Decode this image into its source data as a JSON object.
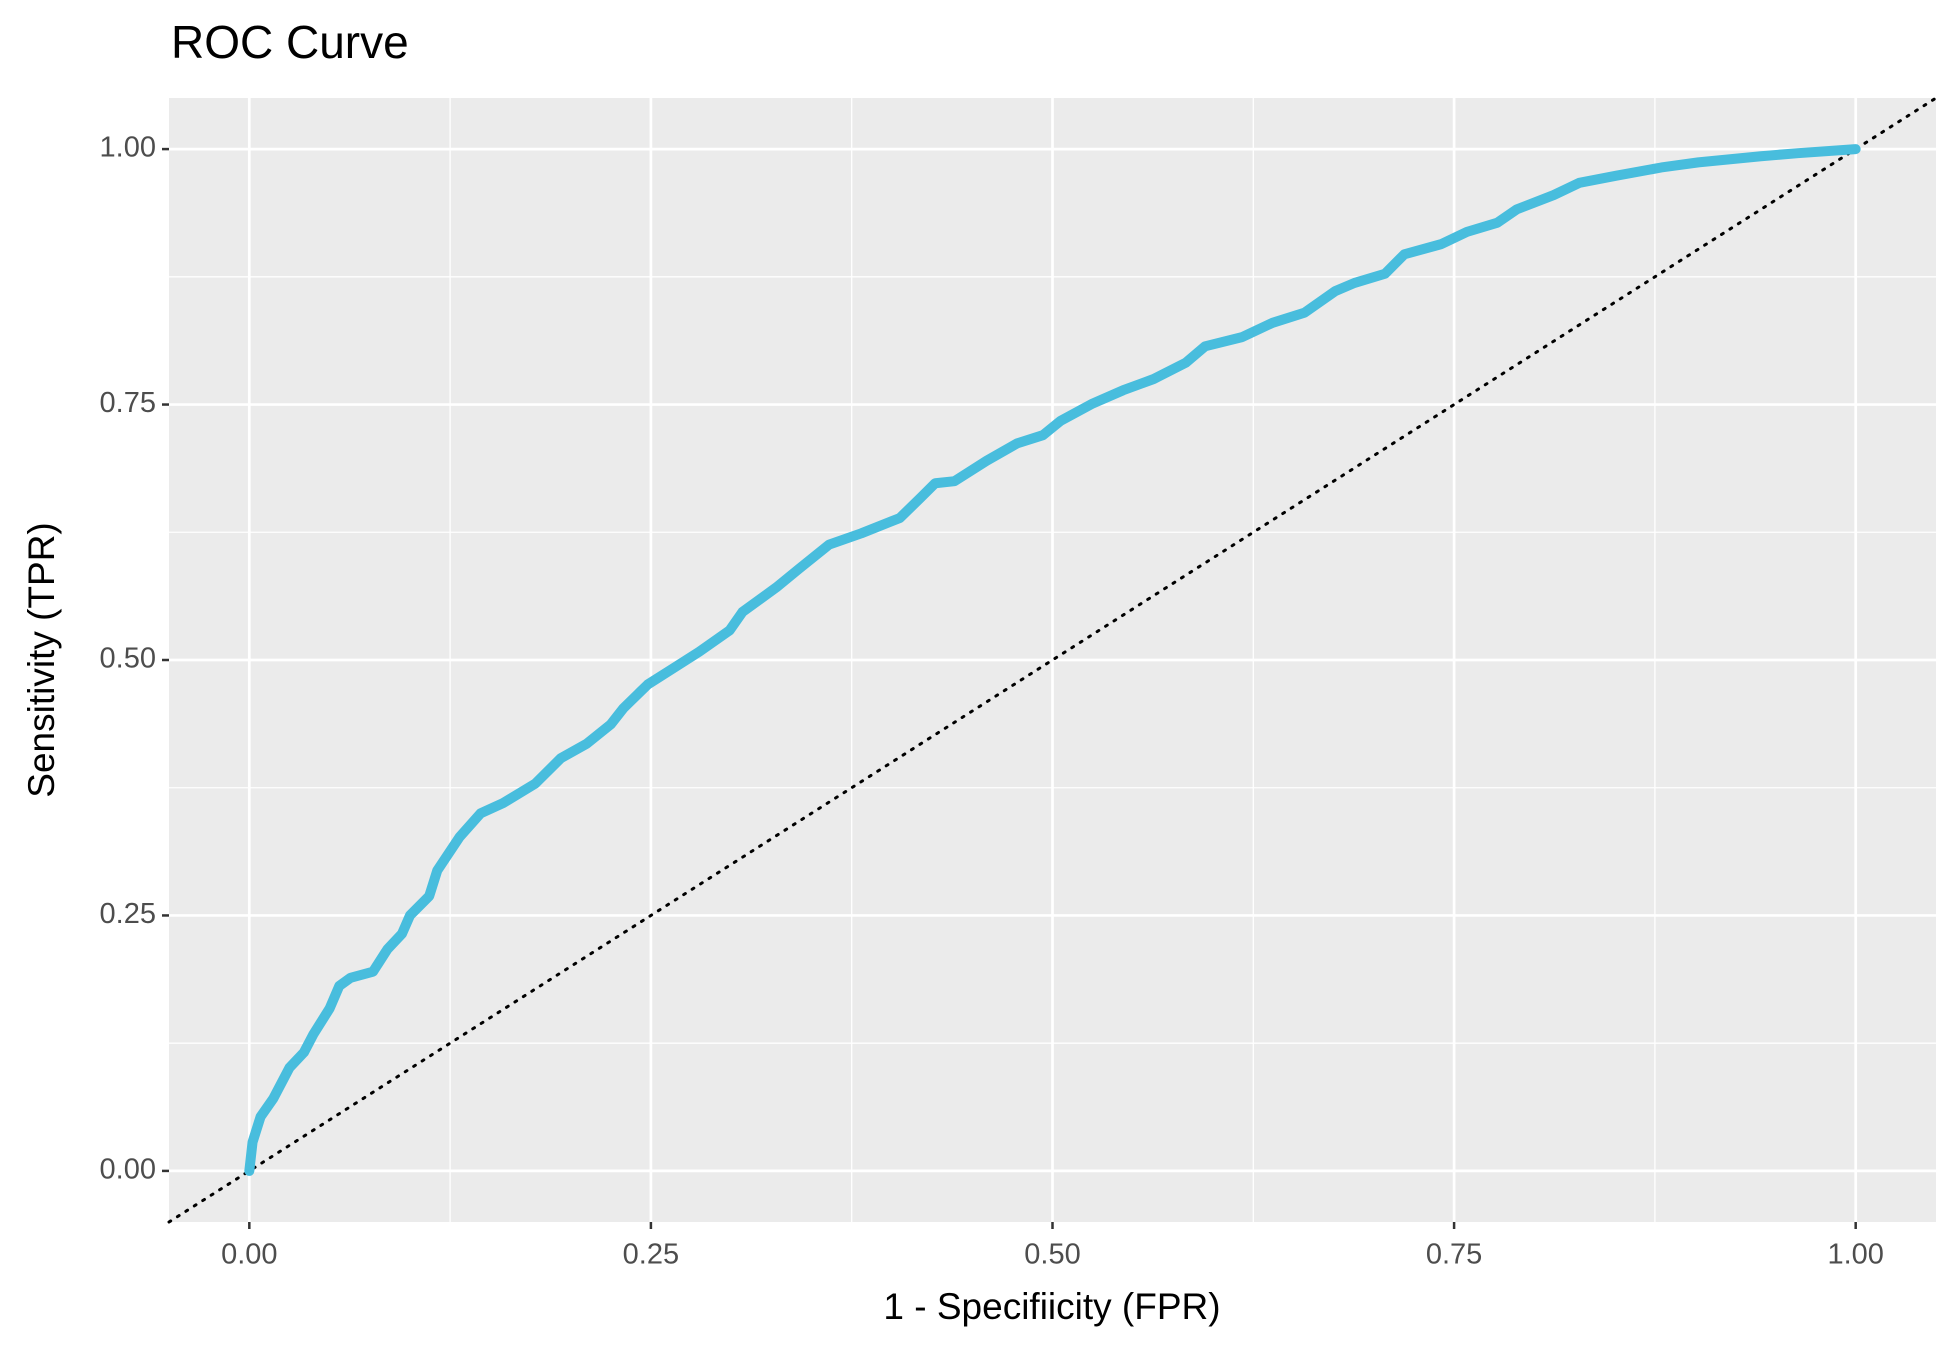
{
  "chart_data": {
    "type": "line",
    "title": "ROC Curve",
    "x_label": "1 - Specifiicity (FPR)",
    "y_label": "Sensitivity (TPR)",
    "xlim": [
      -0.05,
      1.05
    ],
    "ylim": [
      -0.05,
      1.05
    ],
    "xticks": [
      {
        "value": 0,
        "label": "0.00"
      },
      {
        "value": 0.25,
        "label": "0.25"
      },
      {
        "value": 0.5,
        "label": "0.50"
      },
      {
        "value": 0.75,
        "label": "0.75"
      },
      {
        "value": 1,
        "label": "1.00"
      }
    ],
    "yticks": [
      {
        "value": 0,
        "label": "0.00"
      },
      {
        "value": 0.25,
        "label": "0.25"
      },
      {
        "value": 0.5,
        "label": "0.50"
      },
      {
        "value": 0.75,
        "label": "0.75"
      },
      {
        "value": 1,
        "label": "1.00"
      }
    ],
    "x_minor_ticks": [
      0.125,
      0.375,
      0.625,
      0.875
    ],
    "y_minor_ticks": [
      0.125,
      0.375,
      0.625,
      0.875
    ],
    "grid": true,
    "diagonal_reference": true,
    "series": [
      {
        "color": "#48bddd",
        "x": [
          0,
          0.002,
          0.007,
          0.015,
          0.025,
          0.034,
          0.04,
          0.05,
          0.056,
          0.063,
          0.077,
          0.086,
          0.095,
          0.1,
          0.112,
          0.117,
          0.131,
          0.144,
          0.158,
          0.178,
          0.194,
          0.21,
          0.225,
          0.233,
          0.248,
          0.264,
          0.28,
          0.299,
          0.307,
          0.328,
          0.342,
          0.361,
          0.381,
          0.405,
          0.418,
          0.427,
          0.439,
          0.459,
          0.478,
          0.494,
          0.505,
          0.525,
          0.544,
          0.563,
          0.583,
          0.595,
          0.618,
          0.637,
          0.657,
          0.676,
          0.688,
          0.707,
          0.719,
          0.742,
          0.758,
          0.777,
          0.789,
          0.812,
          0.828,
          0.851,
          0.879,
          0.902,
          0.941,
          0.964,
          1
        ],
        "values": [
          0,
          0.028,
          0.053,
          0.071,
          0.101,
          0.116,
          0.134,
          0.159,
          0.181,
          0.189,
          0.195,
          0.217,
          0.232,
          0.25,
          0.269,
          0.294,
          0.327,
          0.35,
          0.36,
          0.379,
          0.404,
          0.418,
          0.437,
          0.453,
          0.476,
          0.492,
          0.508,
          0.529,
          0.547,
          0.571,
          0.589,
          0.613,
          0.624,
          0.639,
          0.659,
          0.673,
          0.675,
          0.695,
          0.712,
          0.72,
          0.734,
          0.751,
          0.764,
          0.775,
          0.791,
          0.807,
          0.816,
          0.83,
          0.84,
          0.861,
          0.869,
          0.878,
          0.897,
          0.907,
          0.919,
          0.928,
          0.941,
          0.955,
          0.967,
          0.974,
          0.982,
          0.987,
          0.993,
          0.996,
          1
        ]
      }
    ]
  }
}
